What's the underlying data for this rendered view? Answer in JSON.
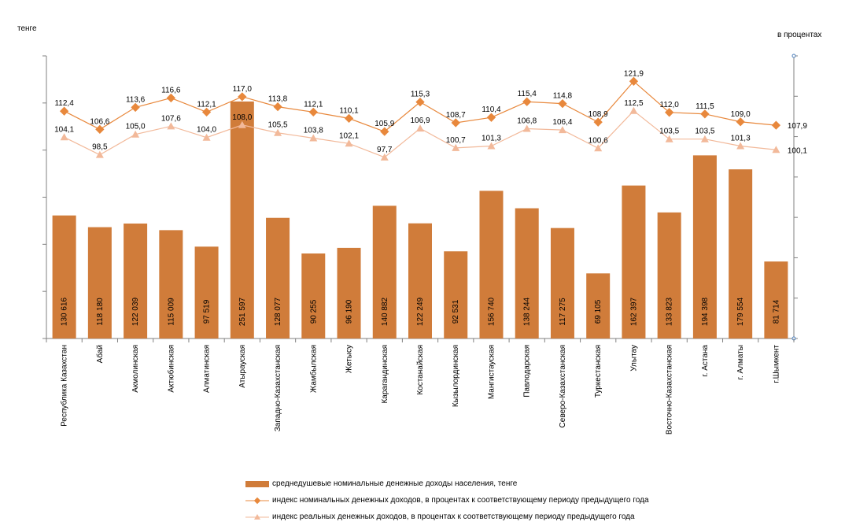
{
  "chart_data": {
    "type": "bar+line",
    "title": "",
    "left_axis_unit": "тенге",
    "right_axis_unit": "в процентах",
    "categories": [
      "Республика Казахстан",
      "Абай",
      "Акмолинская",
      "Актюбинская",
      "Алматинская",
      "Атырауская",
      "Западно-Казахстанская",
      "Жамбылская",
      "Жетысу",
      "Карагандинская",
      "Костанайская",
      "Кызылординская",
      "Мангистауская",
      "Павлодарская",
      "Северо-Казахстанская",
      "Туркестанская",
      "Улытау",
      "Восточно-Казахстанская",
      "г. Астана",
      "г. Алматы",
      "г.Шымкент"
    ],
    "series": [
      {
        "name": "среднедушевые номинальные денежные доходы населения, тенге",
        "kind": "bar",
        "color": "#D07C3A",
        "values": [
          130616,
          118180,
          122039,
          115009,
          97519,
          251597,
          128077,
          90255,
          96190,
          140882,
          122249,
          92531,
          156740,
          138244,
          117275,
          69105,
          162397,
          133823,
          194398,
          179554,
          81714
        ],
        "labels": [
          "130 616",
          "118 180",
          "122 039",
          "115 009",
          "97 519",
          "251 597",
          "128 077",
          "90 255",
          "96 190",
          "140 882",
          "122 249",
          "92 531",
          "156 740",
          "138 244",
          "117 275",
          "69 105",
          "162 397",
          "133 823",
          "194 398",
          "179 554",
          "81 714"
        ]
      },
      {
        "name": "индекс номинальных денежных доходов, в процентах к соответствующему периоду предыдущего года",
        "kind": "line",
        "color": "#E8883C",
        "values": [
          112.4,
          106.6,
          113.6,
          116.6,
          112.1,
          117.0,
          113.8,
          112.1,
          110.1,
          105.9,
          115.3,
          108.7,
          110.4,
          115.4,
          114.8,
          108.9,
          121.9,
          112.0,
          111.5,
          109.0,
          107.9
        ],
        "labels": [
          "112,4",
          "106,6",
          "113,6",
          "116,6",
          "112,1",
          "117,0",
          "113,8",
          "112,1",
          "110,1",
          "105,9",
          "115,3",
          "108,7",
          "110,4",
          "115,4",
          "114,8",
          "108,9",
          "121,9",
          "112,0",
          "111,5",
          "109,0",
          "107,9"
        ]
      },
      {
        "name": "индекс реальных денежных доходов, в процентах к соответствующему периоду предыдущего года",
        "kind": "line",
        "color": "#F2B99A",
        "values": [
          104.1,
          98.5,
          105.0,
          107.6,
          104.0,
          108.0,
          105.5,
          103.8,
          102.1,
          97.7,
          106.9,
          100.7,
          101.3,
          106.8,
          106.4,
          100.6,
          112.5,
          103.5,
          103.5,
          101.3,
          100.1
        ],
        "labels": [
          "104,1",
          "98,5",
          "105,0",
          "107,6",
          "104,0",
          "108,0",
          "105,5",
          "103,8",
          "102,1",
          "97,7",
          "106,9",
          "100,7",
          "101,3",
          "106,8",
          "106,4",
          "100,6",
          "112,5",
          "103,5",
          "103,5",
          "101,3",
          "100,1"
        ]
      }
    ],
    "legend_position": "bottom",
    "grid": false
  }
}
